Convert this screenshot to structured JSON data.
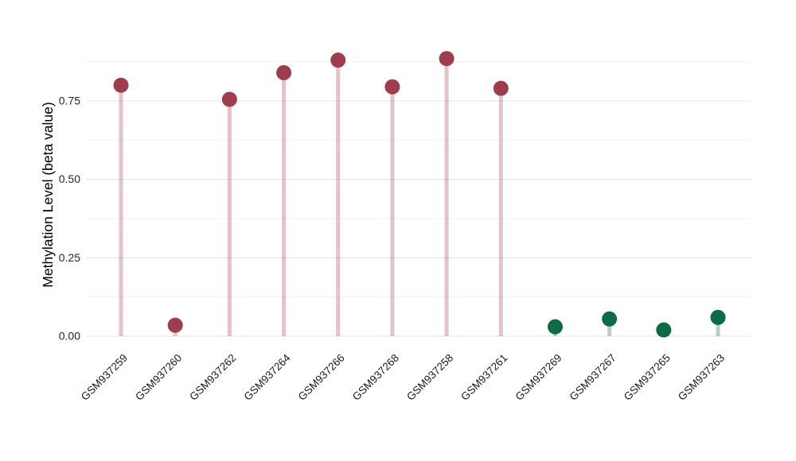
{
  "figure": {
    "background": "#ffffff"
  },
  "chart_data": {
    "type": "scatter",
    "variant": "lollipop",
    "title": "",
    "xlabel": "",
    "ylabel": "Methylation Level (beta value)",
    "categories": [
      "GSM937259",
      "GSM937260",
      "GSM937262",
      "GSM937264",
      "GSM937266",
      "GSM937268",
      "GSM937258",
      "GSM937261",
      "GSM937269",
      "GSM937267",
      "GSM937265",
      "GSM937263"
    ],
    "values": [
      0.8,
      0.035,
      0.755,
      0.84,
      0.88,
      0.795,
      0.885,
      0.79,
      0.03,
      0.055,
      0.02,
      0.06
    ],
    "point_colors": [
      "#9E3D4D",
      "#9E3D4D",
      "#9E3D4D",
      "#9E3D4D",
      "#9E3D4D",
      "#9E3D4D",
      "#9E3D4D",
      "#9E3D4D",
      "#0E6B46",
      "#0E6B46",
      "#0E6B46",
      "#0E6B46"
    ],
    "colors": {
      "maroon": "#9E3D4D",
      "green": "#0E6B46",
      "major_grid": "#e9e9e9",
      "minor_grid": "#f3f3f3"
    },
    "ylim": [
      0,
      0.9
    ],
    "ytick_values": [
      0,
      0.25,
      0.5,
      0.75
    ],
    "ytick_labels": [
      "0.00",
      "0.25",
      "0.50",
      "0.75"
    ],
    "minor_grid_step": 0.125,
    "grid": true,
    "legend": "none",
    "x_label_rotation_deg": 45
  }
}
